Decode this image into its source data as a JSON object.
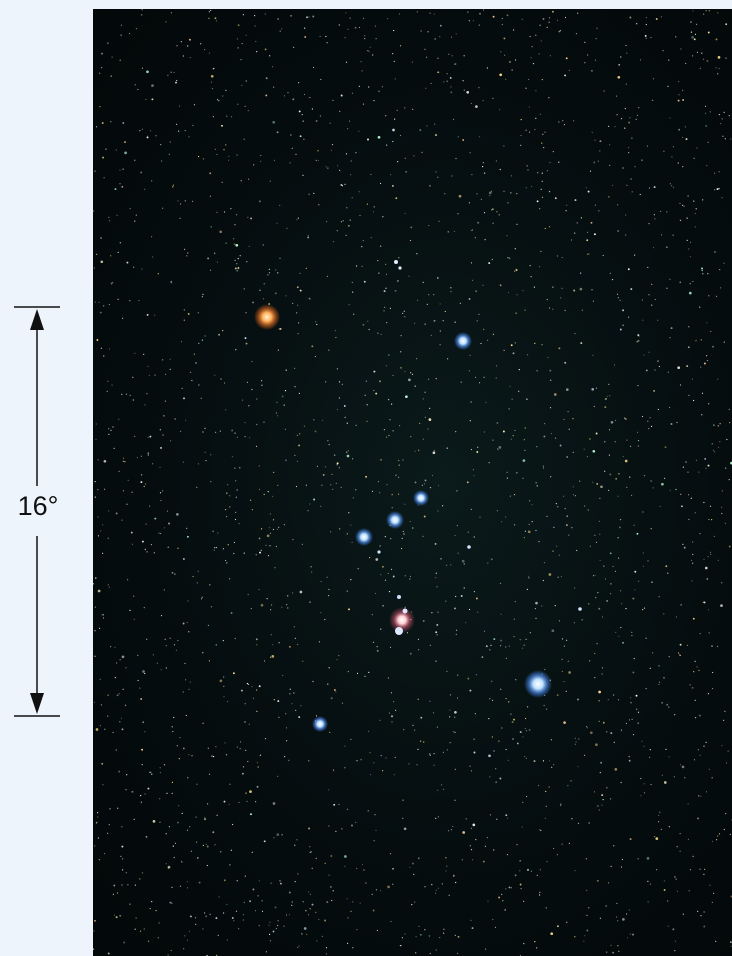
{
  "scale": {
    "label": "16°"
  },
  "colors": {
    "background": "#eef4fb",
    "sky": "#050d0f",
    "red_star": "#ff9a3c",
    "blue_star": "#9fd0ff",
    "nebula": "#ff9aa8"
  }
}
